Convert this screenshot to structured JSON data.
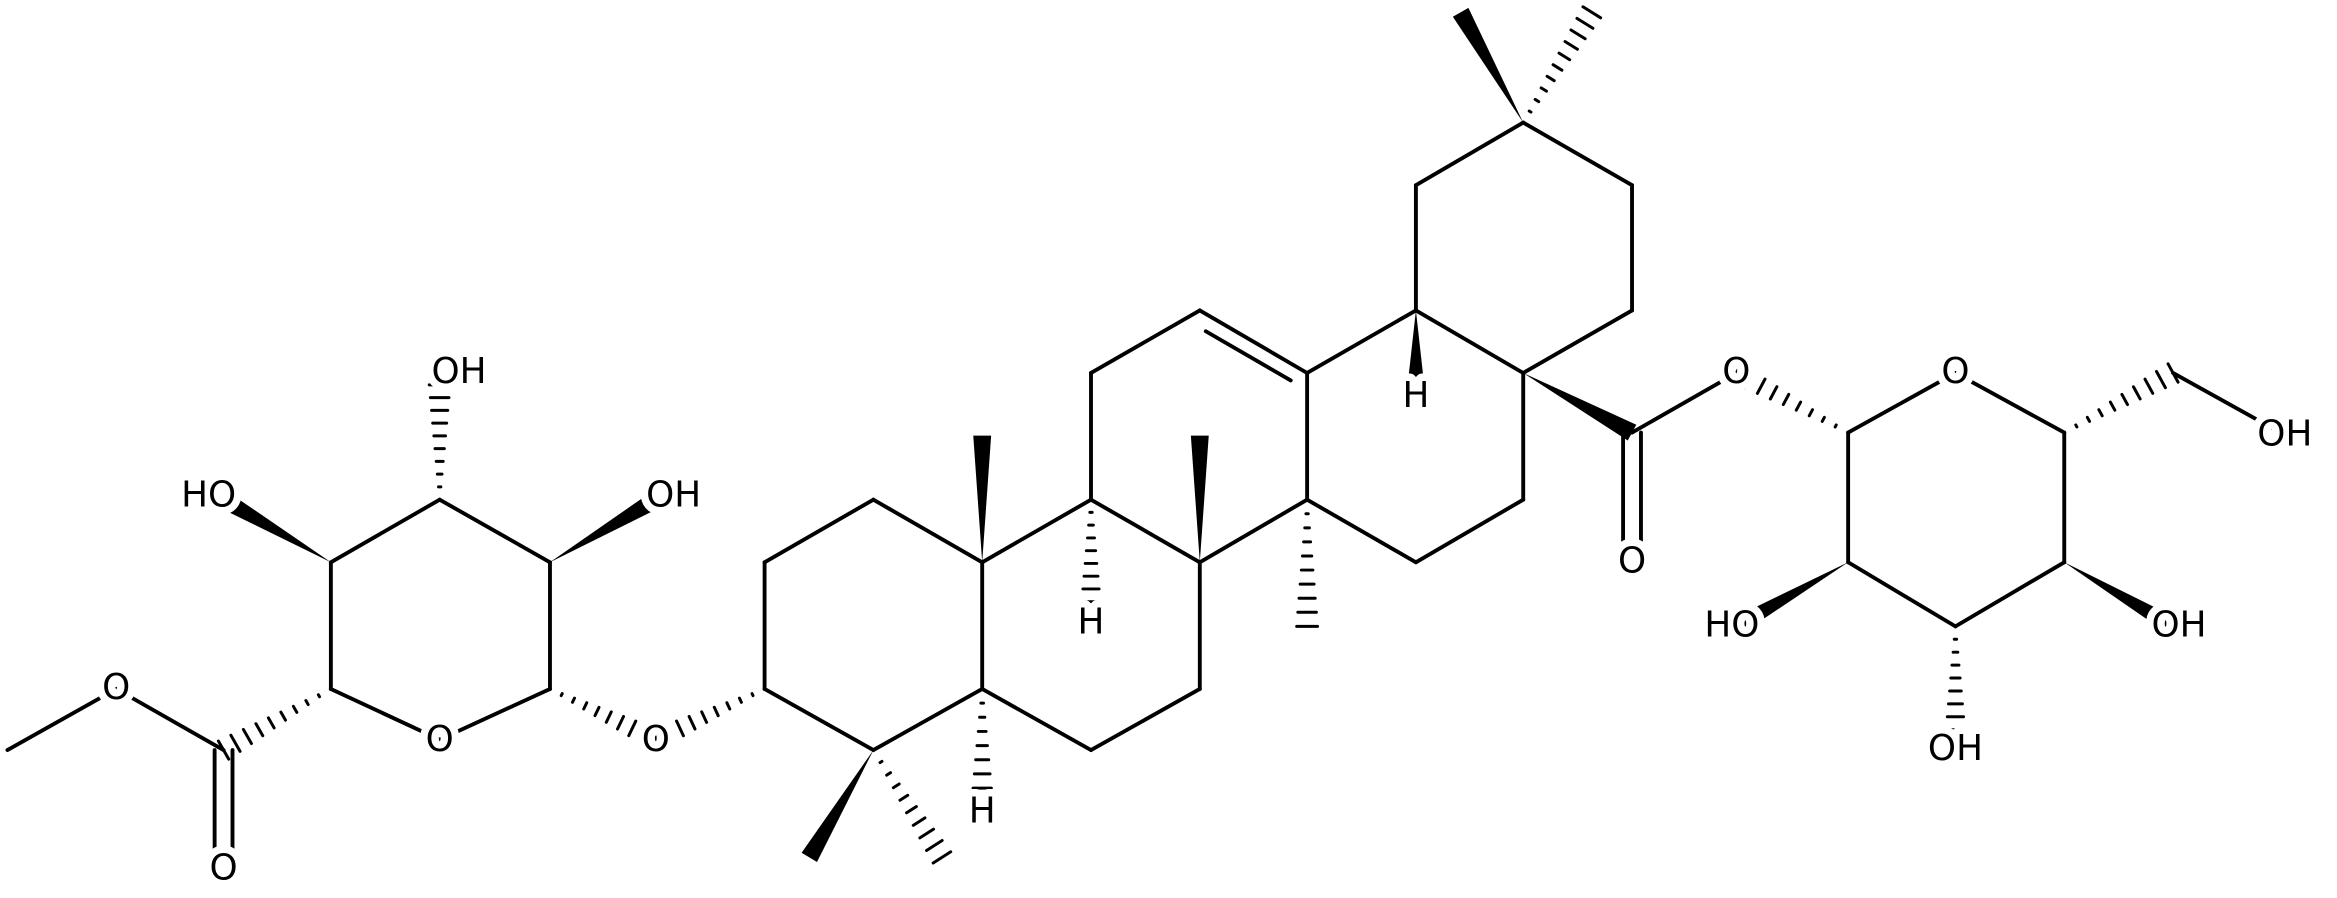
{
  "labels": [
    "OH",
    "HO",
    "OH",
    "O",
    "O",
    "O",
    "O",
    "H",
    "H",
    "H",
    "O",
    "O",
    "O",
    "OH",
    "HO",
    "OH",
    "OH"
  ]
}
